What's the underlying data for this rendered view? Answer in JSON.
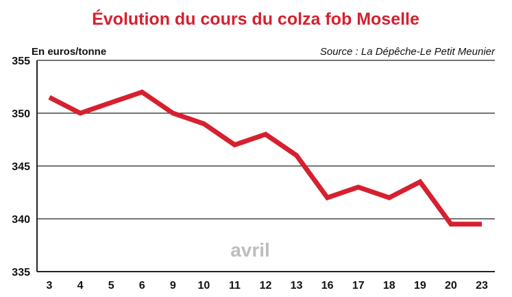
{
  "chart_data": {
    "type": "line",
    "title": "Évolution du cours du colza fob Moselle",
    "ylabel": "En euros/tonne",
    "source": "Source : La Dépêche-Le Petit Meunier",
    "annotation": "avril",
    "categories": [
      "3",
      "4",
      "5",
      "6",
      "9",
      "10",
      "11",
      "12",
      "13",
      "16",
      "17",
      "18",
      "19",
      "20",
      "23"
    ],
    "series": [
      {
        "values": [
          351.5,
          350,
          351,
          352,
          350,
          349,
          347,
          348,
          346,
          342,
          343,
          342,
          343.5,
          339.5,
          339.5
        ]
      }
    ],
    "ylim": [
      335,
      355
    ],
    "yticks": [
      "335",
      "340",
      "345",
      "350",
      "355"
    ],
    "grid": true,
    "legend": "none",
    "colors": {
      "line": "#d6202f",
      "title": "#d6202f",
      "grid": "#222222",
      "annotation": "#bdbdbd"
    }
  }
}
